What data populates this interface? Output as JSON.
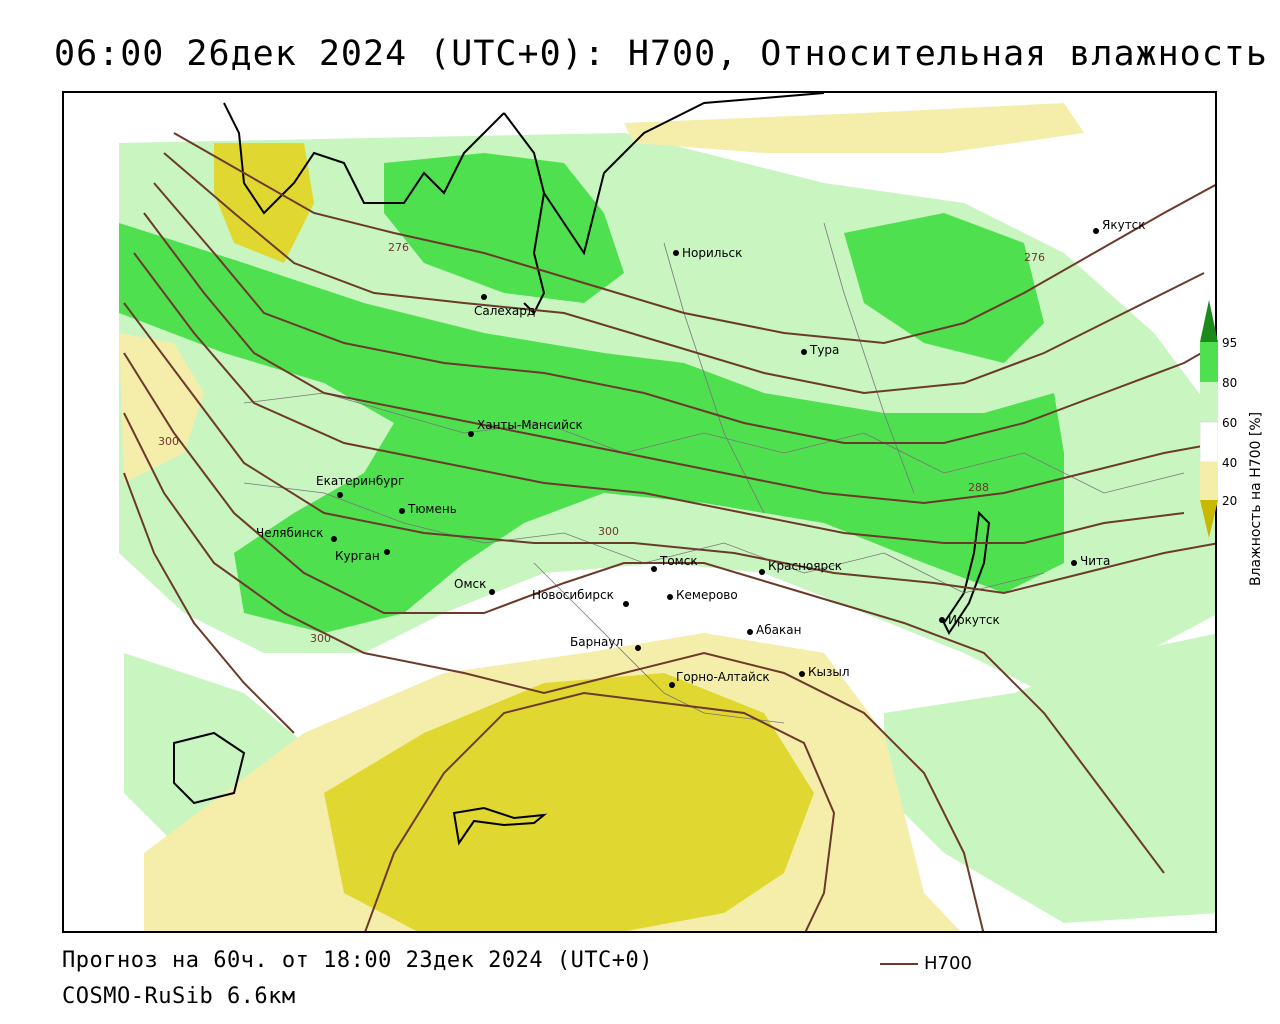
{
  "title": "06:00 26дек 2024 (UTC+0): H700, Относительная влажность",
  "footer": {
    "forecast": "Прогноз на 60ч. от 18:00 23дек 2024 (UTC+0)",
    "model": "COSMO-RuSib 6.6км"
  },
  "legend": {
    "series": "H700",
    "series_color": "#6b3a2a"
  },
  "colorbar": {
    "title": "Влажность на H700 [%]",
    "ticks": [
      "95",
      "80",
      "60",
      "40",
      "20"
    ],
    "colors": {
      "very_dry": "#c8b800",
      "dry": "#e0d830",
      "moderately_dry": "#f4eeaa",
      "neutral": "#ffffff",
      "moist": "#c8f5c0",
      "wet": "#4fe04f",
      "very_wet": "#1a8a1a"
    }
  },
  "contour_labels": {
    "c276_west": "276",
    "c276_east": "276",
    "c288": "288",
    "c300_mid": "300",
    "c300_west": "300",
    "c300_far_west": "300"
  },
  "cities": [
    {
      "key": "norilsk",
      "name": "Норильск"
    },
    {
      "key": "yakutsk",
      "name": "Якутск"
    },
    {
      "key": "salekhard",
      "name": "Салехард"
    },
    {
      "key": "tura",
      "name": "Тура"
    },
    {
      "key": "khanty",
      "name": "Ханты-Мансийск"
    },
    {
      "key": "ekb",
      "name": "Екатеринбург"
    },
    {
      "key": "tyumen",
      "name": "Тюмень"
    },
    {
      "key": "chelyabinsk",
      "name": "Челябинск"
    },
    {
      "key": "kurgan",
      "name": "Курган"
    },
    {
      "key": "omsk",
      "name": "Омск"
    },
    {
      "key": "novosibirsk",
      "name": "Новосибирск"
    },
    {
      "key": "tomsk",
      "name": "Томск"
    },
    {
      "key": "kemerovo",
      "name": "Кемерово"
    },
    {
      "key": "krasnoyarsk",
      "name": "Красноярск"
    },
    {
      "key": "chita",
      "name": "Чита"
    },
    {
      "key": "abakan",
      "name": "Абакан"
    },
    {
      "key": "irkutsk",
      "name": "Иркутск"
    },
    {
      "key": "barnaul",
      "name": "Барнаул"
    },
    {
      "key": "kyzyl",
      "name": "Кызыл"
    },
    {
      "key": "gorno",
      "name": "Горно-Алтайск"
    }
  ]
}
